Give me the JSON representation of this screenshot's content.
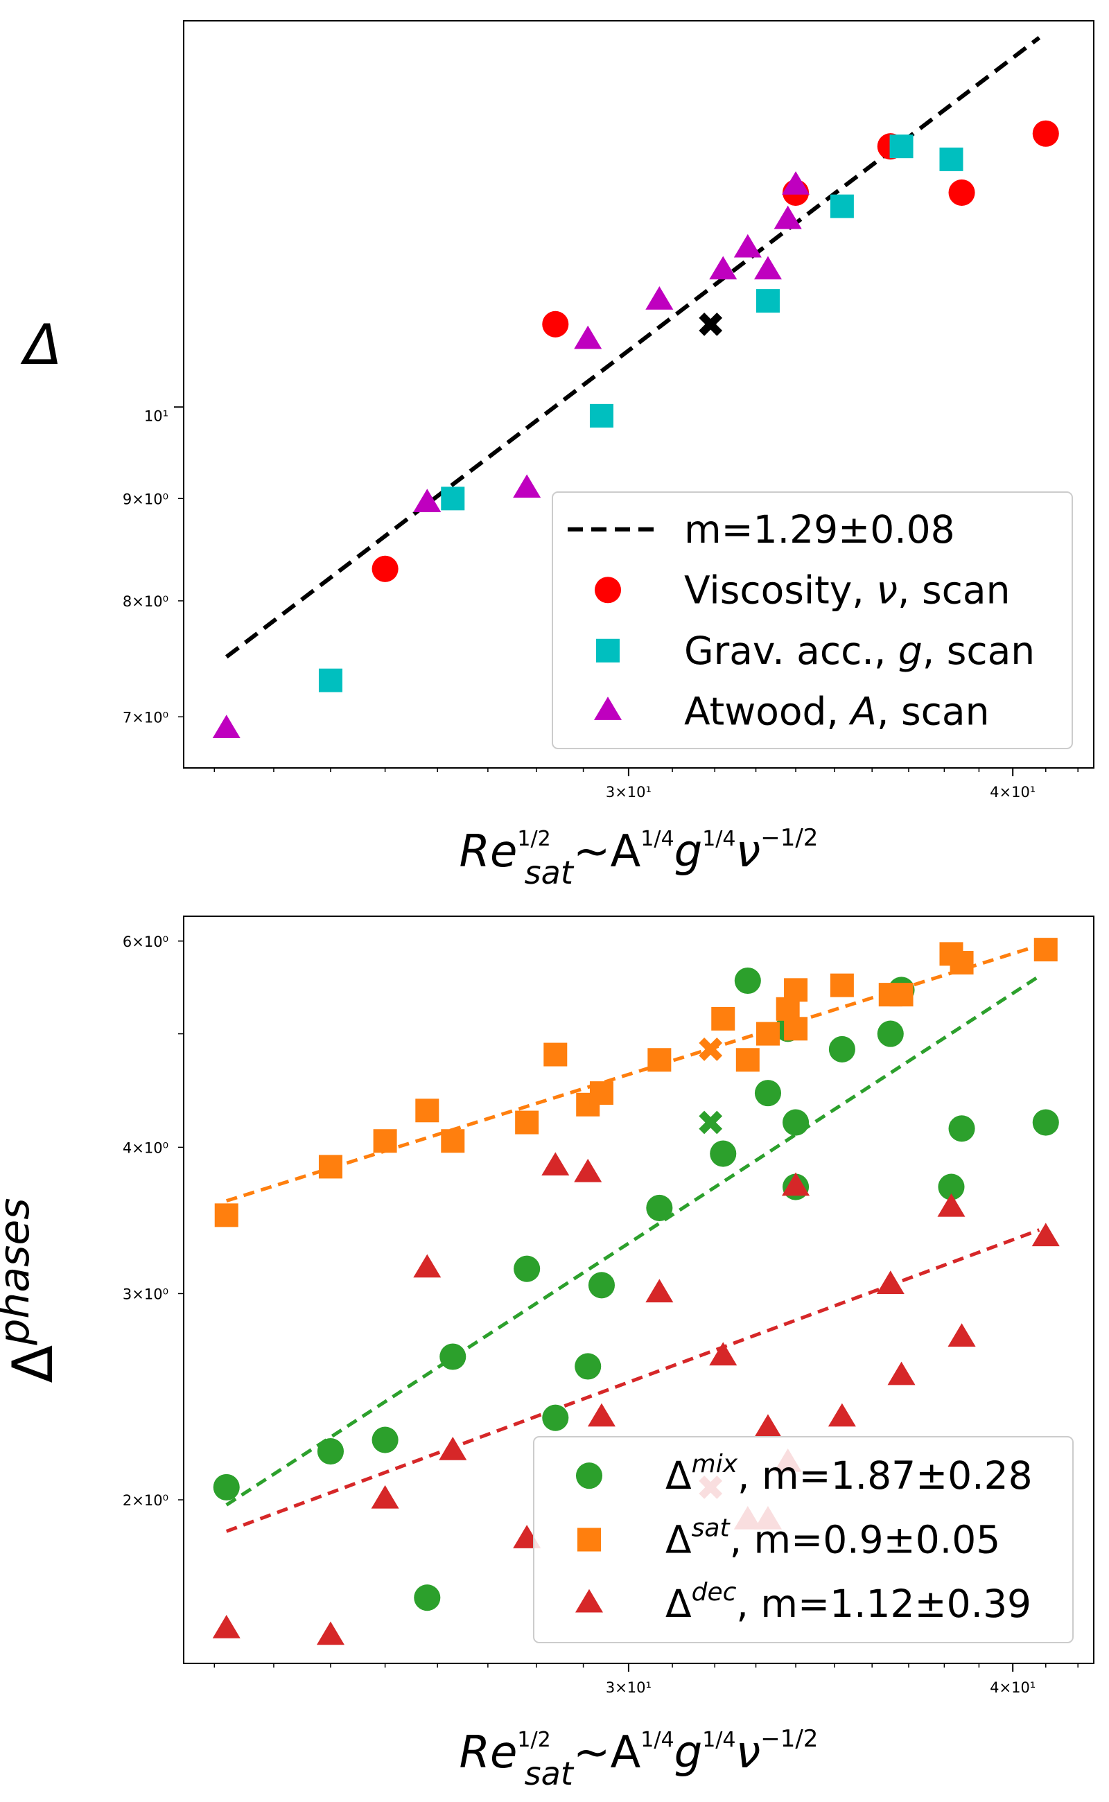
{
  "chart_data": [
    {
      "type": "scatter",
      "xscale": "log",
      "yscale": "log",
      "xlim": [
        21.5,
        42.5
      ],
      "ylim": [
        6.6,
        15.6
      ],
      "ylabel": "Δ",
      "xlabel_parts": [
        "Re",
        "1/2",
        "sat",
        "~A",
        "1/4",
        "g",
        "1/4",
        "ν",
        "−1/2"
      ],
      "x_ticks": [
        {
          "value": 30,
          "label": "3×10¹"
        },
        {
          "value": 40,
          "label": "4×10¹"
        }
      ],
      "y_ticks_major": [
        {
          "value": 10,
          "label": "10¹"
        }
      ],
      "y_ticks_minor": [
        {
          "value": 7,
          "label": "7×10⁰"
        },
        {
          "value": 8,
          "label": "8×10⁰"
        },
        {
          "value": 9,
          "label": "9×10⁰"
        }
      ],
      "legend_position": "lower-right",
      "fit_line": {
        "label": "m=1.29±0.08",
        "color": "#000000",
        "x": [
          22.2,
          40.8
        ],
        "y": [
          7.5,
          15.3
        ]
      },
      "highlight": {
        "x": 31.9,
        "y": 11.0,
        "color": "#000000"
      },
      "series": [
        {
          "name": "Viscosity, ν, scan",
          "legend_parts": [
            "Viscosity, ",
            "ν",
            ", scan"
          ],
          "marker": "circle",
          "color": "#ff0000",
          "points": [
            [
              25.0,
              8.3
            ],
            [
              28.4,
              11.0
            ],
            [
              34.0,
              12.8
            ],
            [
              36.5,
              13.5
            ],
            [
              38.5,
              12.8
            ],
            [
              41.0,
              13.7
            ]
          ]
        },
        {
          "name": "Grav. acc., g, scan",
          "legend_parts": [
            "Grav. acc., ",
            "g",
            ", scan"
          ],
          "marker": "square",
          "color": "#00bfbf",
          "points": [
            [
              24.0,
              7.3
            ],
            [
              26.3,
              9.0
            ],
            [
              29.4,
              9.9
            ],
            [
              33.3,
              11.3
            ],
            [
              35.2,
              12.6
            ],
            [
              36.8,
              13.5
            ],
            [
              38.2,
              13.3
            ]
          ]
        },
        {
          "name": "Atwood, A, scan",
          "legend_parts": [
            "Atwood, ",
            "A",
            ", scan"
          ],
          "marker": "triangle",
          "color": "#bf00bf",
          "points": [
            [
              22.2,
              6.9
            ],
            [
              25.8,
              8.95
            ],
            [
              27.8,
              9.1
            ],
            [
              29.1,
              10.8
            ],
            [
              30.7,
              11.3
            ],
            [
              32.2,
              11.7
            ],
            [
              32.8,
              12.0
            ],
            [
              33.3,
              11.7
            ],
            [
              33.8,
              12.4
            ],
            [
              34.0,
              12.9
            ]
          ]
        }
      ]
    },
    {
      "type": "scatter",
      "xscale": "log",
      "yscale": "log",
      "xlim": [
        21.5,
        42.5
      ],
      "ylim": [
        1.45,
        6.3
      ],
      "ylabel_parts": [
        "Δ",
        "phases"
      ],
      "xlabel_parts": [
        "Re",
        "1/2",
        "sat",
        "~A",
        "1/4",
        "g",
        "1/4",
        "ν",
        "−1/2"
      ],
      "x_ticks": [
        {
          "value": 30,
          "label": "3×10¹"
        },
        {
          "value": 40,
          "label": "4×10¹"
        }
      ],
      "y_ticks_minor": [
        {
          "value": 2,
          "label": "2×10⁰"
        },
        {
          "value": 3,
          "label": "3×10⁰"
        },
        {
          "value": 4,
          "label": "4×10⁰"
        },
        {
          "value": 6,
          "label": "6×10⁰"
        }
      ],
      "y_ticks_unlabeled": [
        5
      ],
      "legend_position": "lower-right",
      "series": [
        {
          "name": "Δmix, m=1.87±0.28",
          "legend_parts": [
            "Δ",
            "mix",
            ", m=1.87±0.28"
          ],
          "marker": "circle",
          "color": "#2ca02c",
          "fit_line": {
            "x": [
              22.2,
              40.8
            ],
            "y": [
              1.98,
              5.6
            ]
          },
          "highlight": {
            "x": 31.9,
            "y": 4.2
          },
          "points": [
            [
              22.2,
              2.05
            ],
            [
              24.0,
              2.2
            ],
            [
              25.0,
              2.25
            ],
            [
              25.8,
              1.65
            ],
            [
              26.3,
              2.65
            ],
            [
              27.8,
              3.15
            ],
            [
              28.4,
              2.35
            ],
            [
              29.1,
              2.6
            ],
            [
              29.4,
              3.05
            ],
            [
              30.7,
              3.55
            ],
            [
              32.2,
              3.95
            ],
            [
              32.8,
              5.55
            ],
            [
              33.3,
              4.45
            ],
            [
              33.8,
              5.05
            ],
            [
              34.0,
              4.2
            ],
            [
              34.0,
              3.7
            ],
            [
              35.2,
              4.85
            ],
            [
              36.5,
              5.0
            ],
            [
              36.8,
              5.45
            ],
            [
              38.2,
              3.7
            ],
            [
              38.5,
              4.15
            ],
            [
              41.0,
              4.2
            ]
          ]
        },
        {
          "name": "Δsat, m=0.9±0.05",
          "legend_parts": [
            "Δ",
            "sat",
            ", m=0.9±0.05"
          ],
          "marker": "square",
          "color": "#ff7f0e",
          "fit_line": {
            "x": [
              22.2,
              40.8
            ],
            "y": [
              3.6,
              5.95
            ]
          },
          "highlight": {
            "x": 31.9,
            "y": 4.85
          },
          "points": [
            [
              22.2,
              3.5
            ],
            [
              24.0,
              3.85
            ],
            [
              25.0,
              4.05
            ],
            [
              25.8,
              4.3
            ],
            [
              26.3,
              4.05
            ],
            [
              27.8,
              4.2
            ],
            [
              28.4,
              4.8
            ],
            [
              29.1,
              4.35
            ],
            [
              29.4,
              4.45
            ],
            [
              30.7,
              4.75
            ],
            [
              32.2,
              5.15
            ],
            [
              32.8,
              4.75
            ],
            [
              33.3,
              5.0
            ],
            [
              33.8,
              5.25
            ],
            [
              34.0,
              5.45
            ],
            [
              34.0,
              5.05
            ],
            [
              35.2,
              5.5
            ],
            [
              36.5,
              5.4
            ],
            [
              36.8,
              5.4
            ],
            [
              38.2,
              5.85
            ],
            [
              38.5,
              5.75
            ],
            [
              41.0,
              5.9
            ]
          ]
        },
        {
          "name": "Δdec, m=1.12±0.39",
          "legend_parts": [
            "Δ",
            "dec",
            ", m=1.12±0.39"
          ],
          "marker": "triangle",
          "color": "#d62728",
          "fit_line": {
            "x": [
              22.2,
              40.8
            ],
            "y": [
              1.88,
              3.4
            ]
          },
          "highlight": {
            "x": 31.9,
            "y": 2.05
          },
          "points": [
            [
              22.2,
              1.55
            ],
            [
              24.0,
              1.53
            ],
            [
              25.0,
              2.0
            ],
            [
              25.8,
              3.15
            ],
            [
              26.3,
              2.2
            ],
            [
              27.8,
              1.85
            ],
            [
              28.4,
              3.85
            ],
            [
              29.1,
              3.8
            ],
            [
              29.4,
              2.35
            ],
            [
              30.7,
              3.0
            ],
            [
              32.2,
              2.65
            ],
            [
              32.8,
              1.92
            ],
            [
              33.3,
              2.3
            ],
            [
              33.3,
              1.92
            ],
            [
              33.8,
              2.15
            ],
            [
              34.0,
              3.7
            ],
            [
              35.2,
              2.35
            ],
            [
              36.5,
              3.05
            ],
            [
              36.8,
              2.55
            ],
            [
              38.2,
              3.55
            ],
            [
              38.5,
              2.75
            ],
            [
              41.0,
              3.35
            ]
          ]
        }
      ]
    }
  ]
}
